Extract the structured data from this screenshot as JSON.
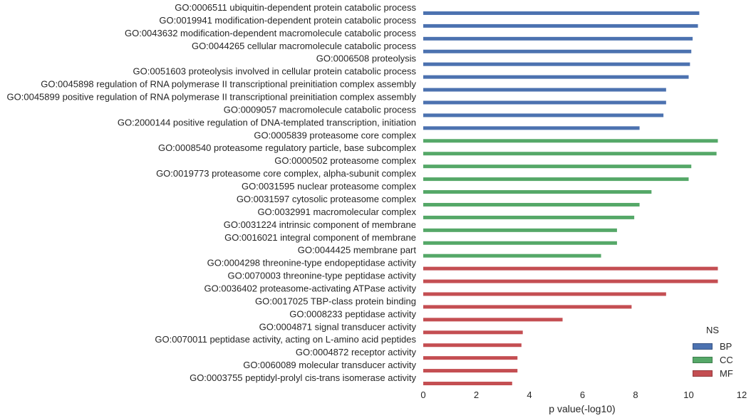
{
  "chart_data": {
    "type": "bar",
    "orientation": "horizontal",
    "categories": [
      "GO:0006511 ubiquitin-dependent protein catabolic process",
      "GO:0019941 modification-dependent protein catabolic process",
      "GO:0043632 modification-dependent macromolecule catabolic process",
      "GO:0044265 cellular macromolecule catabolic process",
      "GO:0006508 proteolysis",
      "GO:0051603 proteolysis involved in cellular protein catabolic process",
      "GO:0045898 regulation of RNA polymerase II transcriptional preinitiation complex assembly",
      "GO:0045899 positive regulation of RNA polymerase II transcriptional preinitiation complex assembly",
      "GO:0009057 macromolecule catabolic process",
      "GO:2000144 positive regulation of DNA-templated transcription, initiation",
      "GO:0005839 proteasome core complex",
      "GO:0008540 proteasome regulatory particle, base subcomplex",
      "GO:0000502 proteasome complex",
      "GO:0019773 proteasome core complex, alpha-subunit complex",
      "GO:0031595 nuclear proteasome complex",
      "GO:0031597 cytosolic proteasome complex",
      "GO:0032991 macromolecular complex",
      "GO:0031224 intrinsic component of membrane",
      "GO:0016021 integral component of membrane",
      "GO:0044425 membrane part",
      "GO:0004298 threonine-type endopeptidase activity",
      "GO:0070003 threonine-type peptidase activity",
      "GO:0036402 proteasome-activating ATPase activity",
      "GO:0017025 TBP-class protein binding",
      "GO:0008233 peptidase activity",
      "GO:0004871 signal transducer activity",
      "GO:0070011 peptidase activity, acting on L-amino acid peptides",
      "GO:0004872 receptor activity",
      "GO:0060089 molecular transducer activity",
      "GO:0003755 peptidyl-prolyl cis-trans isomerase activity"
    ],
    "series": [
      {
        "name": "BP",
        "color": "#4c72b0",
        "values": [
          10.4,
          10.35,
          10.15,
          10.1,
          10.05,
          10.0,
          9.15,
          9.15,
          9.05,
          8.15,
          null,
          null,
          null,
          null,
          null,
          null,
          null,
          null,
          null,
          null,
          null,
          null,
          null,
          null,
          null,
          null,
          null,
          null,
          null,
          null
        ]
      },
      {
        "name": "CC",
        "color": "#55a868",
        "values": [
          null,
          null,
          null,
          null,
          null,
          null,
          null,
          null,
          null,
          null,
          11.1,
          11.05,
          10.1,
          10.0,
          8.6,
          8.15,
          7.95,
          7.3,
          7.3,
          6.7,
          null,
          null,
          null,
          null,
          null,
          null,
          null,
          null,
          null,
          null
        ]
      },
      {
        "name": "MF",
        "color": "#c44e52",
        "values": [
          null,
          null,
          null,
          null,
          null,
          null,
          null,
          null,
          null,
          null,
          null,
          null,
          null,
          null,
          null,
          null,
          null,
          null,
          null,
          null,
          11.1,
          11.1,
          9.15,
          7.85,
          5.25,
          3.75,
          3.7,
          3.55,
          3.55,
          3.35
        ]
      }
    ],
    "xlabel": "p value(-log10)",
    "ylabel": "",
    "xlim": [
      0,
      12
    ],
    "xticks": [
      0,
      2,
      4,
      6,
      8,
      10,
      12
    ],
    "grid": false,
    "legend": {
      "title": "NS",
      "entries": [
        "BP",
        "CC",
        "MF"
      ],
      "placement": "lower-right"
    }
  }
}
